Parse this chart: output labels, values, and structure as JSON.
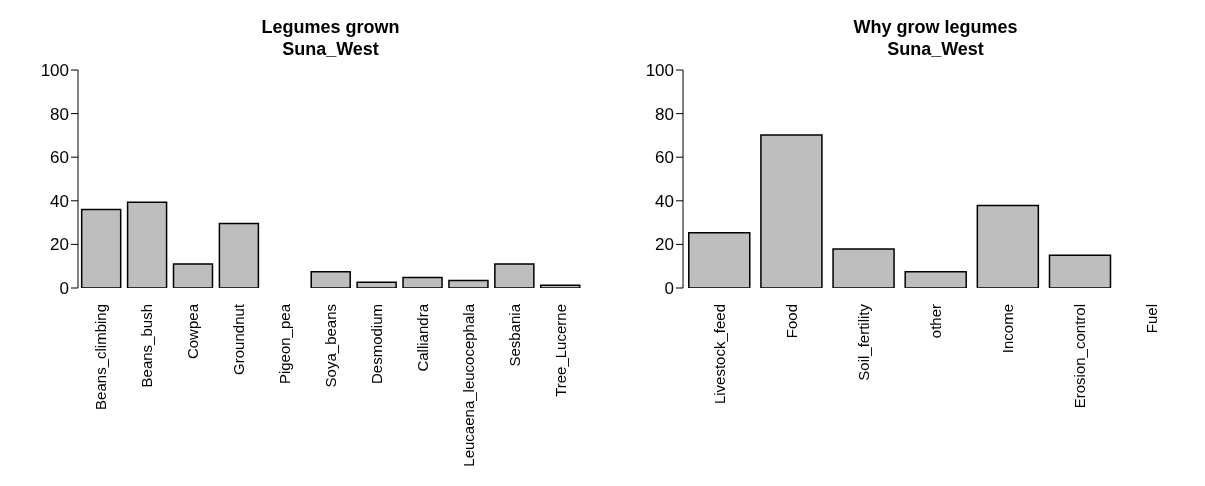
{
  "chart_data": [
    {
      "type": "bar",
      "title": "Legumes grown",
      "subtitle": "Suna_West",
      "categories": [
        "Beans_climbing",
        "Beans_bush",
        "Cowpea",
        "Groundnut",
        "Pigeon_pea",
        "Soya_beans",
        "Desmodium",
        "Calliandra",
        "Leucaena_leucocephala",
        "Sesbania",
        "Tree_Lucerne"
      ],
      "values": [
        36,
        39.3,
        11,
        29.6,
        0,
        7.5,
        2.6,
        4.8,
        3.4,
        11,
        1.3
      ],
      "color": "#bebebe",
      "ylim": [
        0,
        100
      ],
      "yticks": [
        0,
        20,
        40,
        60,
        80,
        100
      ],
      "grid": false,
      "legend": false
    },
    {
      "type": "bar",
      "title": "Why grow legumes",
      "subtitle": "Suna_West",
      "categories": [
        "Livestock_feed",
        "Food",
        "Soil_fertility",
        "other",
        "Income",
        "Erosion_control",
        "Fuel"
      ],
      "values": [
        25.4,
        70.2,
        17.9,
        7.5,
        37.8,
        15,
        0
      ],
      "color": "#bebebe",
      "ylim": [
        0,
        100
      ],
      "yticks": [
        0,
        20,
        40,
        60,
        80,
        100
      ],
      "grid": false,
      "legend": false
    }
  ]
}
